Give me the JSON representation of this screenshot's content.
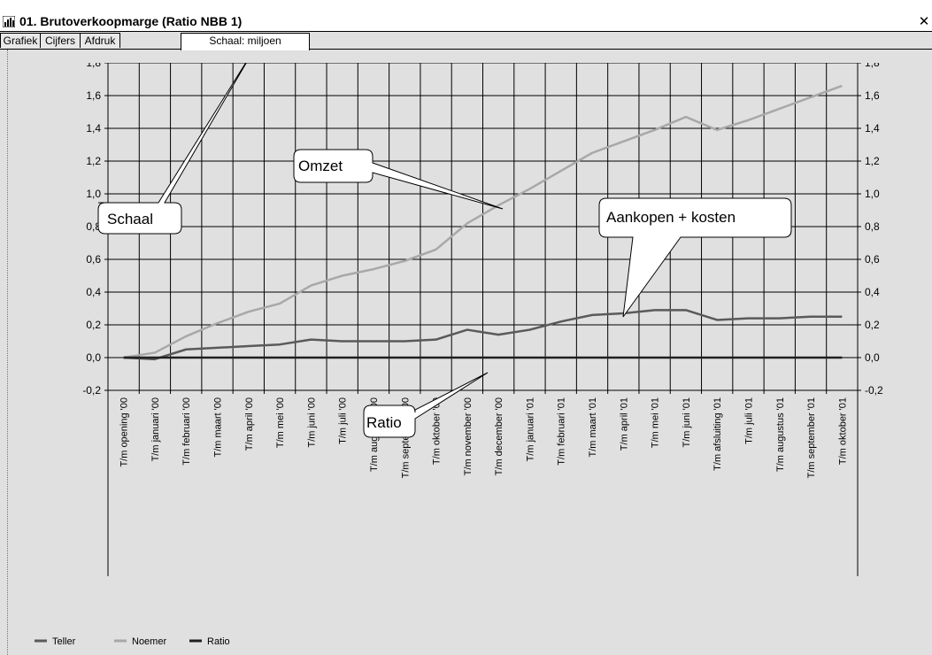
{
  "window": {
    "title": "01. Brutoverkoopmarge (Ratio NBB 1)",
    "close_symbol": "✕",
    "app_icon": "chart-window-icon"
  },
  "tabs": [
    {
      "label": "Grafiek",
      "selected": false
    },
    {
      "label": "Cijfers",
      "selected": false
    },
    {
      "label": "Afdruk",
      "selected": false
    },
    {
      "label": "Schaal: miljoen",
      "selected": true
    }
  ],
  "callouts": {
    "schaal": "Schaal",
    "omzet": "Omzet",
    "aankopen": "Aankopen + kosten",
    "ratio": "Ratio"
  },
  "colors": {
    "teller": "#5a5a5a",
    "noemer": "#a8a8a8",
    "ratio": "#202020",
    "grid": "#000000",
    "background": "#e0e0e0"
  },
  "chart_data": {
    "type": "line",
    "title": "",
    "xlabel": "",
    "ylabel": "",
    "ylim": [
      -0.2,
      1.8
    ],
    "y_ticks": [
      "1,8",
      "1,6",
      "1,4",
      "1,2",
      "1,0",
      "0,8",
      "0,6",
      "0,4",
      "0,2",
      "0,0",
      "-0,2"
    ],
    "grid": true,
    "legend_position": "bottom-left",
    "categories": [
      "T/m opening '00",
      "T/m januari '00",
      "T/m februari '00",
      "T/m maart '00",
      "T/m april '00",
      "T/m mei '00",
      "T/m juni '00",
      "T/m juli '00",
      "T/m augustus '00",
      "T/m september '00",
      "T/m oktober '00",
      "T/m november '00",
      "T/m december '00",
      "T/m januari '01",
      "T/m februari '01",
      "T/m maart '01",
      "T/m april '01",
      "T/m mei '01",
      "T/m juni '01",
      "T/m afsluiting '01",
      "T/m juli '01",
      "T/m augustus '01",
      "T/m september '01",
      "T/m oktober '01"
    ],
    "series": [
      {
        "name": "Teller",
        "values": [
          0.0,
          -0.01,
          0.05,
          0.06,
          0.07,
          0.08,
          0.11,
          0.1,
          0.1,
          0.1,
          0.11,
          0.17,
          0.14,
          0.17,
          0.22,
          0.26,
          0.27,
          0.29,
          0.29,
          0.23,
          0.24,
          0.24,
          0.25,
          0.25
        ]
      },
      {
        "name": "Noemer",
        "values": [
          0.0,
          0.03,
          0.13,
          0.21,
          0.28,
          0.33,
          0.44,
          0.5,
          0.54,
          0.59,
          0.66,
          0.82,
          0.93,
          1.03,
          1.14,
          1.25,
          1.32,
          1.39,
          1.47,
          1.39,
          1.45,
          1.52,
          1.59,
          1.66
        ]
      },
      {
        "name": "Ratio",
        "values": [
          0.0,
          0.0,
          0.0,
          0.0,
          0.0,
          0.0,
          0.0,
          0.0,
          0.0,
          0.0,
          0.0,
          0.0,
          0.0,
          0.0,
          0.0,
          0.0,
          0.0,
          0.0,
          0.0,
          0.0,
          0.0,
          0.0,
          0.0,
          0.0
        ]
      }
    ]
  }
}
